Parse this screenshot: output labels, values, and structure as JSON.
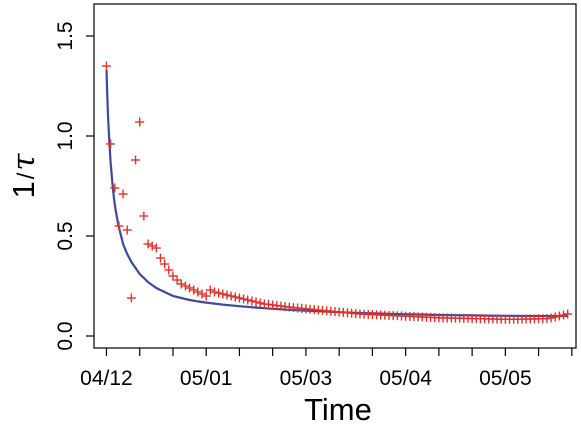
{
  "chart_data": {
    "type": "scatter",
    "title": "",
    "xlabel": "Time",
    "ylabel_main": "1",
    "ylabel_slash": "/",
    "ylabel_tau": "τ",
    "ylim": [
      0,
      1.6
    ],
    "yticks": [
      {
        "value": 0.0,
        "label": "0.0"
      },
      {
        "value": 0.5,
        "label": "0.5"
      },
      {
        "value": 1.0,
        "label": "1.0"
      },
      {
        "value": 1.5,
        "label": "1.5"
      }
    ],
    "xlim": [
      0.5,
      58.5
    ],
    "xticks_minor": [
      2,
      6,
      10,
      14,
      18,
      22,
      26,
      30,
      34,
      38,
      42,
      46,
      50,
      54,
      58
    ],
    "xticks_labeled": [
      {
        "x": 2,
        "label": "04/12"
      },
      {
        "x": 14,
        "label": "05/01"
      },
      {
        "x": 26,
        "label": "05/03"
      },
      {
        "x": 38,
        "label": "05/04"
      },
      {
        "x": 50,
        "label": "05/05"
      }
    ],
    "grid": false,
    "series": [
      {
        "marker": "plus",
        "color": "#e0302a",
        "x": [
          2,
          2.5,
          3,
          3.5,
          4,
          4.5,
          5,
          5.5,
          6,
          6.5,
          7,
          7.5,
          8,
          8.5,
          9,
          9.5,
          10,
          10.5,
          11,
          11.5,
          12,
          12.5,
          13,
          13.5,
          14,
          14.5,
          15,
          15.5,
          16,
          16.5,
          17,
          17.5,
          18,
          18.5,
          19,
          19.5,
          20,
          20.5,
          21,
          21.5,
          22,
          22.5,
          23,
          23.5,
          24,
          24.5,
          25,
          25.5,
          26,
          26.5,
          27,
          27.5,
          28,
          28.5,
          29,
          29.5,
          30,
          30.5,
          31,
          31.5,
          32,
          32.5,
          33,
          33.5,
          34,
          34.5,
          35,
          35.5,
          36,
          36.5,
          37,
          37.5,
          38,
          38.5,
          39,
          39.5,
          40,
          40.5,
          41,
          41.5,
          42,
          42.5,
          43,
          43.5,
          44,
          44.5,
          45,
          45.5,
          46,
          46.5,
          47,
          47.5,
          48,
          48.5,
          49,
          49.5,
          50,
          50.5,
          51,
          51.5,
          52,
          52.5,
          53,
          53.5,
          54,
          54.5,
          55,
          55.5,
          56,
          56.5,
          57,
          57.5
        ],
        "y": [
          1.35,
          0.96,
          0.74,
          0.55,
          0.71,
          0.53,
          0.19,
          0.88,
          1.07,
          0.6,
          0.46,
          0.45,
          0.44,
          0.39,
          0.36,
          0.33,
          0.3,
          0.28,
          0.26,
          0.25,
          0.24,
          0.23,
          0.22,
          0.21,
          0.2,
          0.23,
          0.22,
          0.215,
          0.21,
          0.205,
          0.2,
          0.195,
          0.19,
          0.185,
          0.18,
          0.175,
          0.17,
          0.165,
          0.16,
          0.158,
          0.155,
          0.152,
          0.15,
          0.147,
          0.145,
          0.142,
          0.14,
          0.138,
          0.136,
          0.134,
          0.132,
          0.13,
          0.128,
          0.126,
          0.124,
          0.122,
          0.12,
          0.118,
          0.116,
          0.114,
          0.112,
          0.11,
          0.109,
          0.108,
          0.107,
          0.106,
          0.105,
          0.104,
          0.103,
          0.102,
          0.101,
          0.1,
          0.099,
          0.098,
          0.097,
          0.096,
          0.095,
          0.094,
          0.093,
          0.092,
          0.091,
          0.09,
          0.09,
          0.09,
          0.089,
          0.089,
          0.088,
          0.088,
          0.087,
          0.087,
          0.086,
          0.086,
          0.085,
          0.085,
          0.085,
          0.084,
          0.084,
          0.084,
          0.084,
          0.084,
          0.084,
          0.085,
          0.085,
          0.085,
          0.086,
          0.086,
          0.087,
          0.09,
          0.095,
          0.1,
          0.105,
          0.11
        ]
      },
      {
        "marker": "line",
        "color": "#3d4a9a",
        "x": [
          2,
          2.1,
          2.2,
          2.35,
          2.5,
          2.7,
          2.9,
          3.1,
          3.4,
          3.7,
          4,
          4.5,
          5,
          5.5,
          6,
          6.5,
          7,
          8,
          9,
          10,
          11,
          12,
          13,
          14,
          16,
          18,
          20,
          22,
          24,
          26,
          28,
          30,
          32,
          34,
          36,
          38,
          40,
          42,
          44,
          46,
          48,
          50,
          52,
          54,
          56,
          57.5
        ],
        "y": [
          1.33,
          1.2,
          1.09,
          0.97,
          0.87,
          0.77,
          0.69,
          0.63,
          0.56,
          0.51,
          0.46,
          0.41,
          0.37,
          0.34,
          0.31,
          0.29,
          0.27,
          0.24,
          0.22,
          0.2,
          0.19,
          0.18,
          0.173,
          0.167,
          0.157,
          0.149,
          0.142,
          0.136,
          0.131,
          0.127,
          0.123,
          0.119,
          0.116,
          0.113,
          0.111,
          0.109,
          0.107,
          0.105,
          0.104,
          0.103,
          0.102,
          0.101,
          0.1,
          0.1,
          0.1,
          0.1
        ]
      }
    ]
  }
}
